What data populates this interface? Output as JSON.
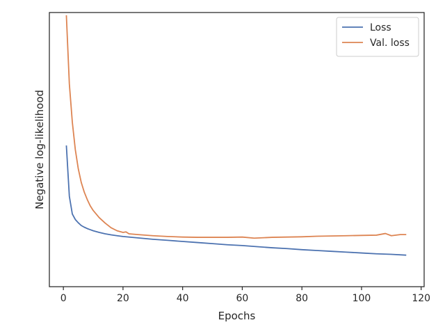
{
  "chart_data": {
    "type": "line",
    "title": "",
    "xlabel": "Epochs",
    "ylabel": "Negative log-likelihood",
    "xlim": [
      -4.7,
      121
    ],
    "ylim": [
      0,
      1
    ],
    "xticks": [
      0,
      20,
      40,
      60,
      80,
      100,
      120
    ],
    "y_tick_labels_shown": false,
    "grid": false,
    "legend": {
      "placement": "top-right"
    },
    "series": [
      {
        "name": "Loss",
        "color": "#4C72B0",
        "x": [
          1,
          2,
          3,
          4,
          5,
          6,
          7,
          8,
          9,
          10,
          12,
          14,
          16,
          18,
          20,
          25,
          30,
          35,
          40,
          45,
          50,
          55,
          60,
          65,
          70,
          75,
          80,
          85,
          90,
          95,
          100,
          105,
          110,
          115
        ],
        "y": [
          0.515,
          0.33,
          0.265,
          0.245,
          0.233,
          0.223,
          0.217,
          0.212,
          0.208,
          0.204,
          0.198,
          0.193,
          0.189,
          0.186,
          0.183,
          0.178,
          0.173,
          0.169,
          0.165,
          0.161,
          0.157,
          0.153,
          0.15,
          0.146,
          0.142,
          0.139,
          0.135,
          0.132,
          0.129,
          0.126,
          0.123,
          0.12,
          0.118,
          0.115
        ]
      },
      {
        "name": "Val. loss",
        "color": "#DD8452",
        "x": [
          1,
          2,
          3,
          4,
          5,
          6,
          7,
          8,
          9,
          10,
          11,
          12,
          14,
          16,
          18,
          20,
          21,
          22,
          25,
          30,
          35,
          40,
          45,
          50,
          55,
          60,
          64,
          70,
          75,
          80,
          85,
          90,
          95,
          100,
          105,
          108,
          110,
          113,
          115
        ],
        "y": [
          0.99,
          0.74,
          0.6,
          0.5,
          0.43,
          0.38,
          0.345,
          0.318,
          0.295,
          0.278,
          0.265,
          0.252,
          0.232,
          0.215,
          0.204,
          0.198,
          0.2,
          0.193,
          0.19,
          0.186,
          0.183,
          0.181,
          0.18,
          0.18,
          0.18,
          0.181,
          0.177,
          0.18,
          0.181,
          0.182,
          0.184,
          0.185,
          0.186,
          0.187,
          0.188,
          0.194,
          0.186,
          0.19,
          0.19
        ]
      }
    ]
  }
}
